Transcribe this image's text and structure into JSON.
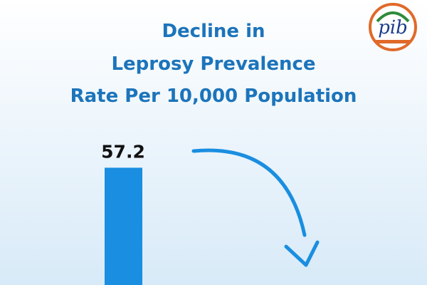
{
  "chart_data": {
    "type": "bar",
    "title": [
      "Decline in",
      "Leprosy Prevalence",
      "Rate Per 10,000 Population"
    ],
    "logo": "pib",
    "categories": [
      null
    ],
    "values": [
      57.2
    ],
    "color": "#1a8ee0"
  }
}
